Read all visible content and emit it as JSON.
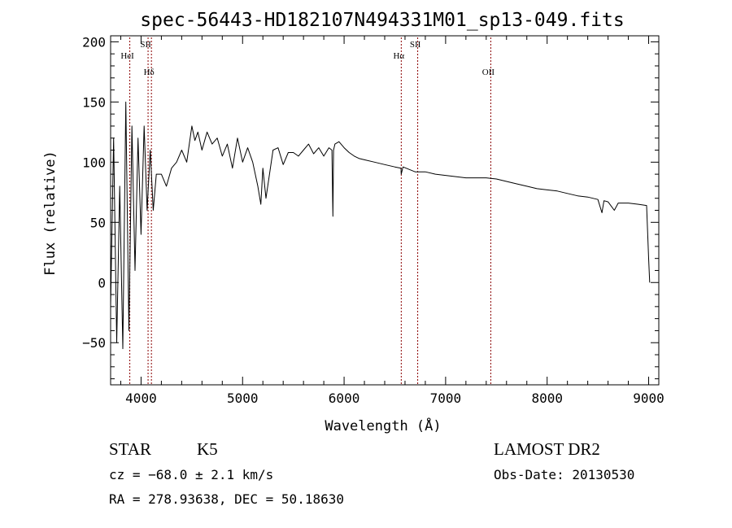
{
  "chart_data": {
    "type": "line",
    "title": "spec-56443-HD182107N494331M01_sp13-049.fits",
    "xlabel": "Wavelength (Å)",
    "ylabel": "Flux (relative)",
    "xlim": [
      3700,
      9100
    ],
    "ylim": [
      -85,
      205
    ],
    "xticks": [
      4000,
      5000,
      6000,
      7000,
      8000,
      9000
    ],
    "yticks": [
      -50,
      0,
      50,
      100,
      150,
      200
    ],
    "grid": false,
    "line_color": "#000000",
    "marker_color": "#8b0000",
    "series": [
      {
        "x": [
          3700,
          3730,
          3760,
          3790,
          3820,
          3850,
          3880,
          3910,
          3940,
          3970,
          4000,
          4030,
          4060,
          4090,
          4120,
          4150,
          4200,
          4250,
          4300,
          4350,
          4400,
          4450,
          4500,
          4530,
          4560,
          4600,
          4650,
          4700,
          4750,
          4800,
          4850,
          4900,
          4950,
          5000,
          5050,
          5100,
          5150,
          5180,
          5200,
          5230,
          5300,
          5350,
          5400,
          5450,
          5500,
          5550,
          5600,
          5650,
          5700,
          5750,
          5800,
          5850,
          5880,
          5890,
          5896,
          5910,
          5950,
          6000,
          6050,
          6100,
          6150,
          6200,
          6300,
          6400,
          6500,
          6560,
          6563,
          6580,
          6700,
          6800,
          6900,
          7000,
          7100,
          7200,
          7300,
          7400,
          7500,
          7600,
          7700,
          7800,
          7900,
          8000,
          8100,
          8200,
          8300,
          8400,
          8500,
          8540,
          8560,
          8600,
          8662,
          8700,
          8800,
          8900,
          8980,
          9000,
          9010
        ],
        "y": [
          -20,
          120,
          -50,
          80,
          -55,
          150,
          -40,
          130,
          10,
          120,
          40,
          130,
          60,
          110,
          60,
          90,
          90,
          80,
          95,
          100,
          110,
          100,
          130,
          118,
          125,
          110,
          125,
          115,
          120,
          105,
          115,
          95,
          120,
          100,
          112,
          100,
          80,
          65,
          95,
          70,
          110,
          112,
          98,
          108,
          108,
          105,
          110,
          115,
          107,
          112,
          105,
          112,
          110,
          55,
          110,
          115,
          117,
          112,
          108,
          105,
          103,
          102,
          100,
          98,
          96,
          95,
          90,
          96,
          92,
          92,
          90,
          89,
          88,
          87,
          87,
          87,
          86,
          84,
          82,
          80,
          78,
          77,
          76,
          74,
          72,
          71,
          69,
          58,
          68,
          67,
          60,
          66,
          66,
          65,
          64,
          20,
          0
        ]
      }
    ],
    "lines": [
      {
        "label": "HeI",
        "x": 3889
      },
      {
        "label": "SII",
        "x": 4069
      },
      {
        "label": "Hδ",
        "x": 4102
      },
      {
        "label": "Hα",
        "x": 6563
      },
      {
        "label": "SII",
        "x": 6725
      },
      {
        "label": "OII",
        "x": 7445
      }
    ]
  },
  "info": {
    "class_label": "STAR",
    "subclass_label": "K5",
    "cz_text": "cz = −68.0 ± 2.1 km/s",
    "radec_text": "RA = 278.93638, DEC =  50.18630",
    "survey_label": "LAMOST DR2",
    "obs_date_text": "Obs-Date: 20130530"
  }
}
